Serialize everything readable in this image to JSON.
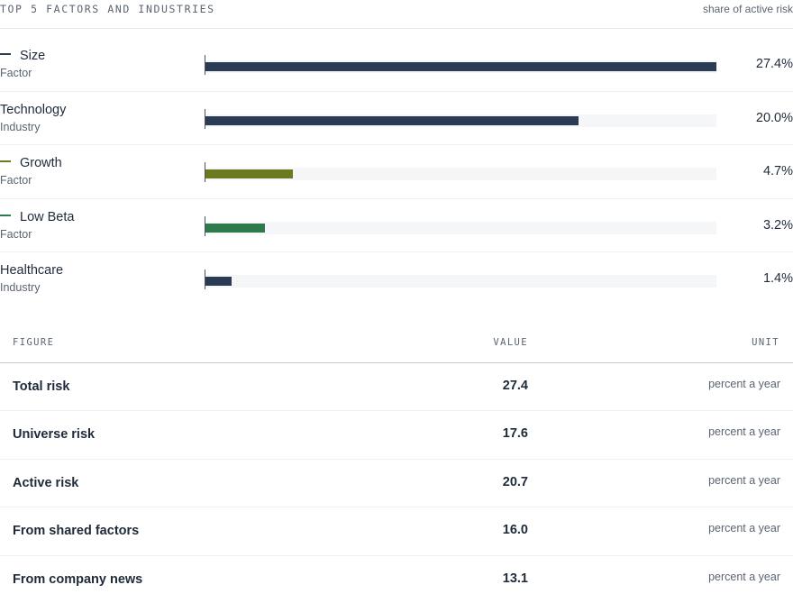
{
  "header": {
    "title": "TOP 5 FACTORS AND INDUSTRIES",
    "subtitle": "share of active risk"
  },
  "chart_data": {
    "type": "bar",
    "orientation": "horizontal",
    "xlim": [
      0,
      27.4
    ],
    "items": [
      {
        "name": "Size",
        "kind": "Factor",
        "value": 27.4,
        "label": "27.4%",
        "color": "#2b3a55",
        "dash": true
      },
      {
        "name": "Technology",
        "kind": "Industry",
        "value": 20.0,
        "label": "20.0%",
        "color": "#2b3a55",
        "dash": false
      },
      {
        "name": "Growth",
        "kind": "Factor",
        "value": 4.7,
        "label": "4.7%",
        "color": "#6b7a1f",
        "dash": true
      },
      {
        "name": "Low Beta",
        "kind": "Factor",
        "value": 3.2,
        "label": "3.2%",
        "color": "#2f7a4a",
        "dash": true
      },
      {
        "name": "Healthcare",
        "kind": "Industry",
        "value": 1.4,
        "label": "1.4%",
        "color": "#2b3a55",
        "dash": false
      }
    ]
  },
  "table": {
    "headers": {
      "figure": "FIGURE",
      "value": "VALUE",
      "unit": "UNIT"
    },
    "rows": [
      {
        "figure": "Total risk",
        "value": "27.4",
        "unit": "percent a year"
      },
      {
        "figure": "Universe risk",
        "value": "17.6",
        "unit": "percent a year"
      },
      {
        "figure": "Active risk",
        "value": "20.7",
        "unit": "percent a year"
      },
      {
        "figure": "From shared factors",
        "value": "16.0",
        "unit": "percent a year"
      },
      {
        "figure": "From company news",
        "value": "13.1",
        "unit": "percent a year"
      }
    ]
  }
}
